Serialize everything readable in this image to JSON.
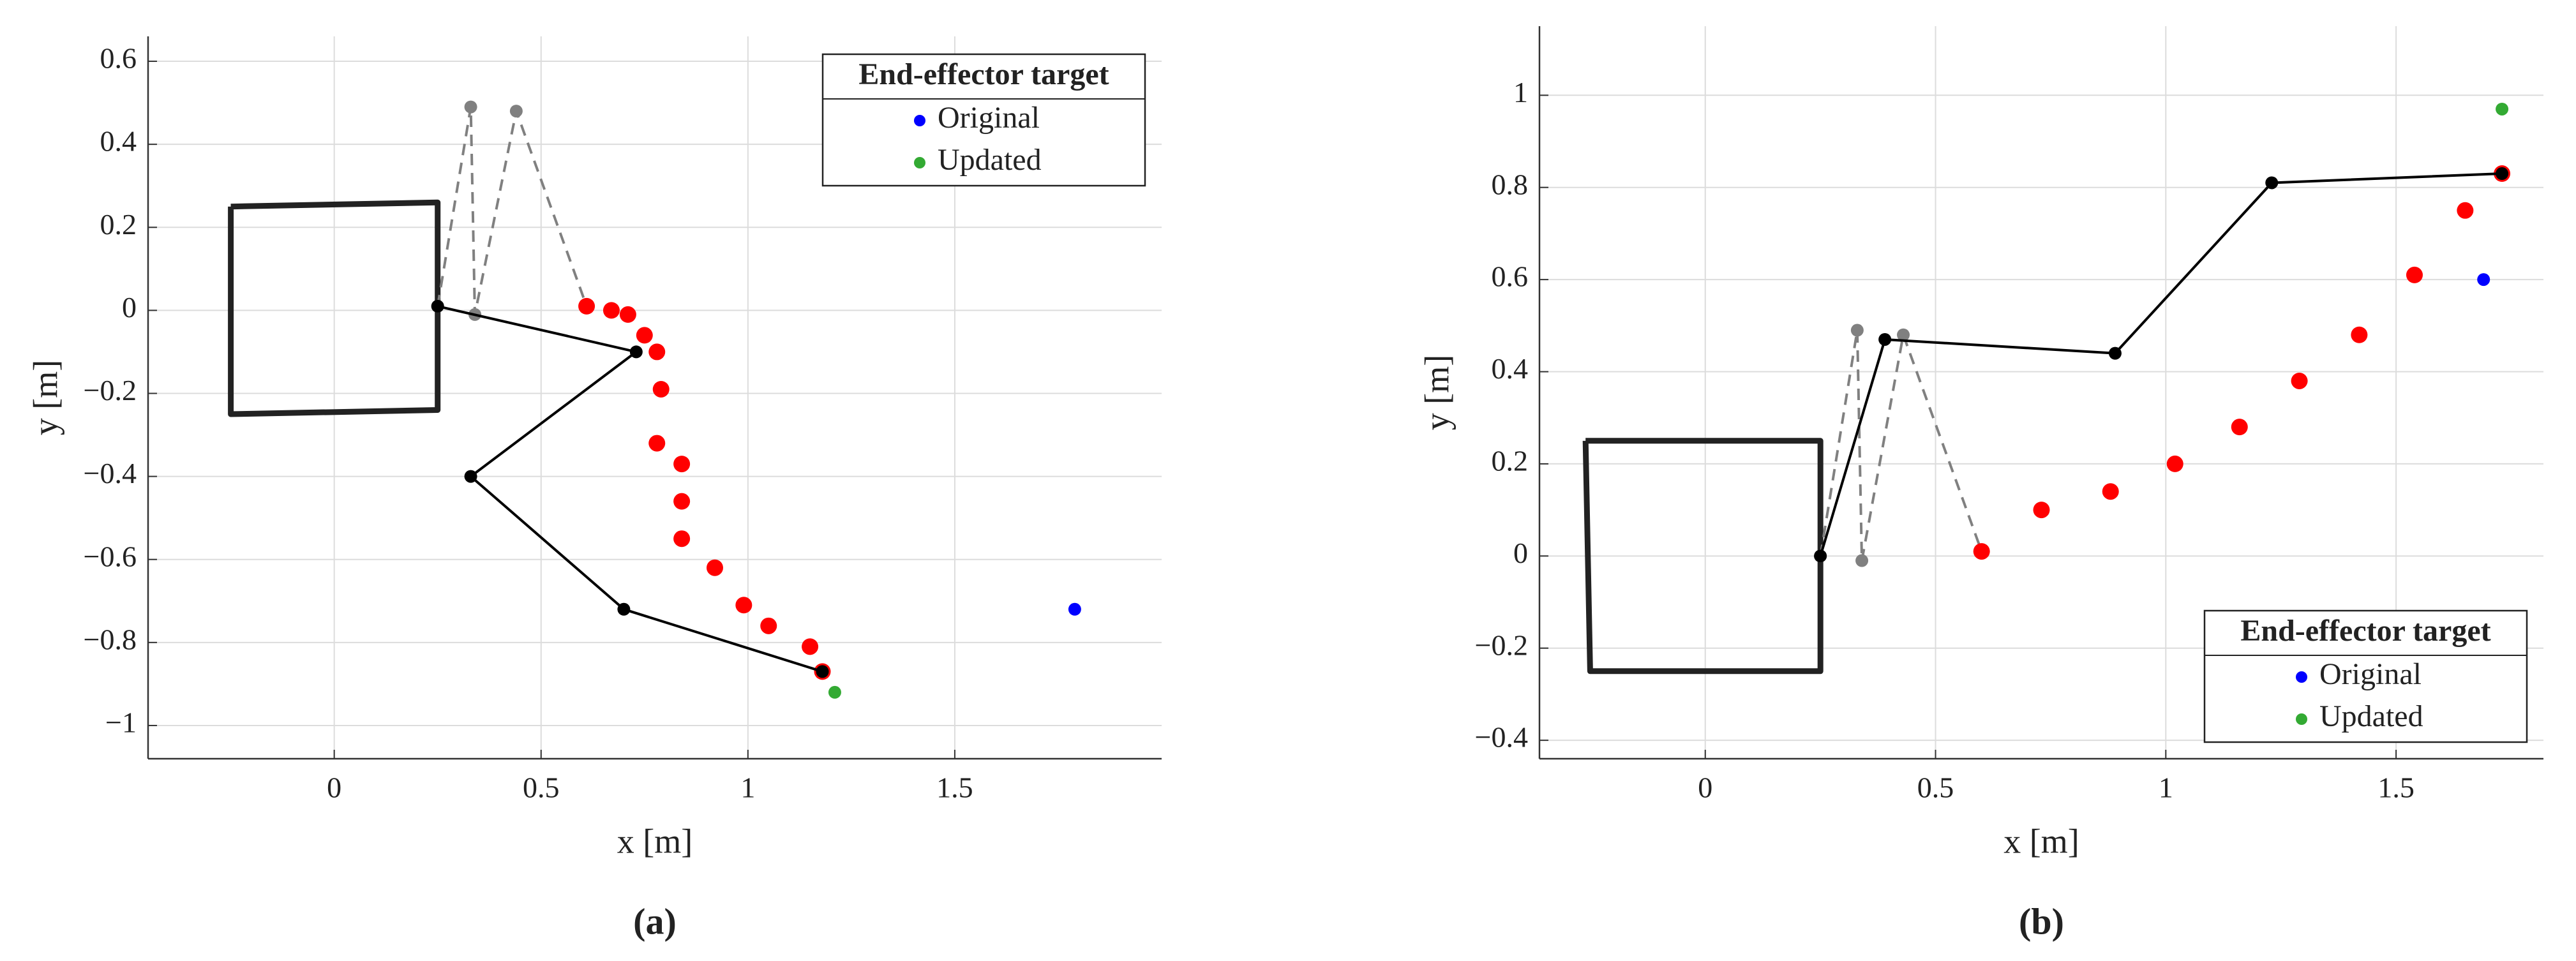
{
  "chart_data": [
    {
      "type": "scatter",
      "xlabel": "x [m]",
      "ylabel": "y [m]",
      "panel_label": "(a)",
      "xlim": [
        -0.45,
        2.0
      ],
      "ylim": [
        -1.08,
        0.66
      ],
      "xticks": [
        0,
        0.5,
        1,
        1.5
      ],
      "yticks": [
        {
          "value": -1,
          "label": "−1"
        },
        {
          "value": -0.8,
          "label": "−0.8"
        },
        {
          "value": -0.6,
          "label": "−0.6"
        },
        {
          "value": -0.4,
          "label": "−0.4"
        },
        {
          "value": -0.2,
          "label": "−0.2"
        },
        0,
        0.2,
        0.4,
        0.6
      ],
      "grid": true,
      "legend_title": "End-effector target",
      "legend_position": "northeast",
      "series": [
        {
          "style": "line",
          "color": "#222222",
          "x": [
            -0.25,
            0.25,
            0.25,
            -0.25,
            -0.25
          ],
          "values": [
            0.25,
            0.26,
            -0.24,
            -0.25,
            0.25
          ]
        },
        {
          "style": "dashed-line-markers",
          "color": "#808080",
          "x": [
            0.25,
            0.33,
            0.34,
            0.44,
            0.61
          ],
          "values": [
            0.01,
            0.49,
            -0.01,
            0.48,
            0.01
          ]
        },
        {
          "style": "markers",
          "color": "#ff0000",
          "x": [
            0.61,
            0.67,
            0.71,
            0.75,
            0.78,
            0.79,
            0.78,
            0.84,
            0.84,
            0.84,
            0.92,
            0.99,
            1.05,
            1.15,
            1.18
          ],
          "values": [
            0.01,
            0.0,
            -0.01,
            -0.06,
            -0.1,
            -0.19,
            -0.32,
            -0.37,
            -0.46,
            -0.55,
            -0.62,
            -0.71,
            -0.76,
            -0.81,
            -0.87
          ]
        },
        {
          "style": "line-markers",
          "color": "#000000",
          "x": [
            0.25,
            0.73,
            0.33,
            0.7,
            1.18
          ],
          "values": [
            0.01,
            -0.1,
            -0.4,
            -0.72,
            -0.87
          ]
        },
        {
          "style": "markers",
          "name": "Original",
          "color": "#0000ff",
          "x": [
            1.79
          ],
          "values": [
            -0.72
          ]
        },
        {
          "style": "markers",
          "name": "Updated",
          "color": "#33aa33",
          "x": [
            1.21
          ],
          "values": [
            -0.92
          ]
        }
      ]
    },
    {
      "type": "scatter",
      "xlabel": "x [m]",
      "ylabel": "y [m]",
      "panel_label": "(b)",
      "xlim": [
        -0.36,
        1.82
      ],
      "ylim": [
        -0.44,
        1.15
      ],
      "xticks": [
        0,
        0.5,
        1,
        1.5
      ],
      "yticks": [
        {
          "value": -0.4,
          "label": "−0.4"
        },
        {
          "value": -0.2,
          "label": "−0.2"
        },
        0,
        0.2,
        0.4,
        0.6,
        0.8,
        1
      ],
      "grid": true,
      "legend_title": "End-effector target",
      "legend_position": "southeast",
      "series": [
        {
          "style": "line",
          "color": "#222222",
          "x": [
            -0.26,
            0.25,
            0.25,
            -0.25,
            -0.26
          ],
          "values": [
            0.25,
            0.25,
            -0.25,
            -0.25,
            0.25
          ]
        },
        {
          "style": "dashed-line-markers",
          "color": "#808080",
          "x": [
            0.25,
            0.33,
            0.34,
            0.43,
            0.6
          ],
          "values": [
            0.0,
            0.49,
            -0.01,
            0.48,
            0.01
          ]
        },
        {
          "style": "markers",
          "color": "#ff0000",
          "x": [
            0.6,
            0.73,
            0.88,
            1.02,
            1.16,
            1.29,
            1.42,
            1.54,
            1.65,
            1.73
          ],
          "values": [
            0.01,
            0.1,
            0.14,
            0.2,
            0.28,
            0.38,
            0.48,
            0.61,
            0.75,
            0.83
          ]
        },
        {
          "style": "line-markers",
          "color": "#000000",
          "x": [
            0.25,
            0.39,
            0.89,
            1.23,
            1.73
          ],
          "values": [
            0.0,
            0.47,
            0.44,
            0.81,
            0.83
          ]
        },
        {
          "style": "markers",
          "name": "Original",
          "color": "#0000ff",
          "x": [
            1.69
          ],
          "values": [
            0.6
          ]
        },
        {
          "style": "markers",
          "name": "Updated",
          "color": "#33aa33",
          "x": [
            1.73
          ],
          "values": [
            0.97
          ]
        }
      ]
    }
  ]
}
